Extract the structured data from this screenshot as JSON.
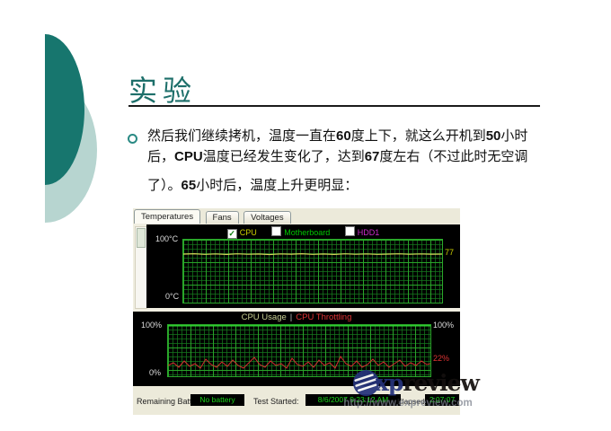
{
  "slide": {
    "title": "实验",
    "bullet_lines": [
      [
        {
          "t": "然后我们继续拷机，温度一直在"
        },
        {
          "t": "60",
          "b": true
        },
        {
          "t": "度上下，就这么开机到"
        },
        {
          "t": "50",
          "b": true
        },
        {
          "t": "小时"
        }
      ],
      [
        {
          "t": "后，"
        },
        {
          "t": "CPU",
          "b": true
        },
        {
          "t": "温度已经发生变化了，达到"
        },
        {
          "t": "67",
          "b": true
        },
        {
          "t": "度左右（不过此时无空调"
        }
      ],
      [
        {
          "t": "了）。"
        },
        {
          "t": "65",
          "b": true
        },
        {
          "t": "小时后，温度上升更明显："
        }
      ]
    ]
  },
  "monitor": {
    "tabs": [
      "Temperatures",
      "Fans",
      "Voltages"
    ],
    "active_tab": "Temperatures",
    "check_glyph": "✓",
    "legend": [
      {
        "label": "CPU",
        "checked": true,
        "color": "#cdd000"
      },
      {
        "label": "Motherboard",
        "checked": false,
        "color": "#00c800"
      },
      {
        "label": "HDD1",
        "checked": false,
        "color": "#cc2bcc"
      }
    ],
    "temp_chart": {
      "y_max_label": "100°C",
      "y_min_label": "0°C",
      "cpu_value_label": "77"
    },
    "usage_chart": {
      "title_left": "CPU Usage",
      "separator": "|",
      "title_right": "CPU Throttling",
      "y_max_left": "100%",
      "y_max_right": "100%",
      "y_min": "0%",
      "throttle_value_label": "22%"
    },
    "status": {
      "battery_label": "Remaining Battery:",
      "battery_value": "No battery",
      "started_label": "Test Started:",
      "started_value": "8/6/2007 9:23:12 AM",
      "elapsed_label": "Elapsed Time:",
      "elapsed_value": "2:07:07"
    }
  },
  "watermark": {
    "brand_blue": "xp",
    "brand_dark": "review",
    "url": "http://www.expreview.com"
  },
  "colors": {
    "deco_dark_teal": "#17766e",
    "deco_light_teal": "#b7d5d0",
    "title_teal": "#1d6f6a",
    "legend_cpu_yellow": "#cdd000",
    "legend_motherboard_green": "#00c800",
    "legend_hdd_magenta": "#cc2bcc",
    "usage_line_green": "#2fd32f",
    "throttle_red": "#e03434",
    "status_value_green": "#1ad61a",
    "watermark_blue": "#26337b"
  },
  "chart_data": [
    {
      "type": "line",
      "title": "Temperatures",
      "ylabel": "°C",
      "ylim": [
        0,
        100
      ],
      "legend": [
        "CPU",
        "Motherboard",
        "HDD1"
      ],
      "legend_position": "top",
      "grid": true,
      "series": [
        {
          "name": "CPU",
          "visible": true,
          "approx_constant_value": 77,
          "end_label": "77"
        },
        {
          "name": "Motherboard",
          "visible": false
        },
        {
          "name": "HDD1",
          "visible": false
        }
      ]
    },
    {
      "type": "line",
      "title": "CPU Usage | CPU Throttling",
      "ylabel": "%",
      "ylim": [
        0,
        100
      ],
      "grid": true,
      "series": [
        {
          "name": "CPU Usage",
          "approx_constant_value": 100
        },
        {
          "name": "CPU Throttling",
          "approx_constant_value": 22,
          "end_label": "22%"
        }
      ]
    }
  ]
}
